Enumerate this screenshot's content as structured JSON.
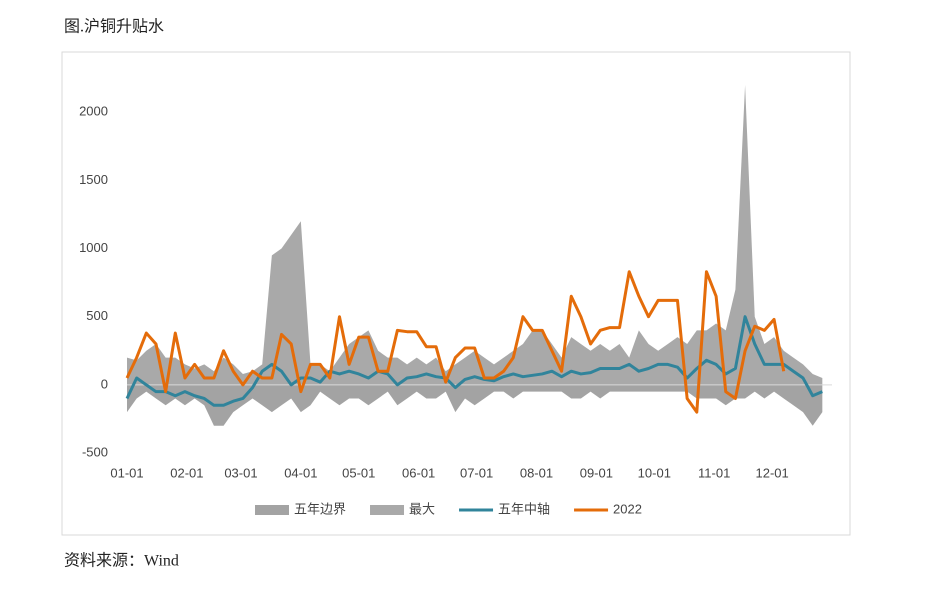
{
  "chart_data": {
    "type": "line",
    "title": "图.沪铜升贴水",
    "source": "资料来源：Wind",
    "x": [
      0,
      5,
      10,
      15,
      20,
      25,
      30,
      35,
      40,
      45,
      50,
      55,
      60,
      65,
      70,
      75,
      80,
      85,
      90,
      95,
      100,
      105,
      110,
      115,
      120,
      125,
      130,
      135,
      140,
      145,
      150,
      155,
      160,
      165,
      170,
      175,
      180,
      185,
      190,
      195,
      200,
      205,
      210,
      215,
      220,
      225,
      230,
      235,
      240,
      245,
      250,
      255,
      260,
      265,
      270,
      275,
      280,
      285,
      290,
      295,
      300,
      305,
      310,
      315,
      320,
      325,
      330,
      335,
      340,
      345,
      350,
      355,
      360
    ],
    "xlim": [
      0,
      365
    ],
    "xticks": [
      {
        "value": 0,
        "label": "01-01"
      },
      {
        "value": 31,
        "label": "02-01"
      },
      {
        "value": 59,
        "label": "03-01"
      },
      {
        "value": 90,
        "label": "04-01"
      },
      {
        "value": 120,
        "label": "05-01"
      },
      {
        "value": 151,
        "label": "06-01"
      },
      {
        "value": 181,
        "label": "07-01"
      },
      {
        "value": 212,
        "label": "08-01"
      },
      {
        "value": 243,
        "label": "09-01"
      },
      {
        "value": 273,
        "label": "10-01"
      },
      {
        "value": 304,
        "label": "11-01"
      },
      {
        "value": 334,
        "label": "12-01"
      }
    ],
    "ylim": [
      -500,
      2200
    ],
    "yticks": [
      -500,
      0,
      500,
      1000,
      1500,
      2000
    ],
    "legend": "bottom",
    "series": [
      {
        "name": "五年边界",
        "type": "area",
        "color": "#a3a3a3",
        "values": [
          -200,
          -100,
          -50,
          -100,
          -150,
          -100,
          -150,
          -100,
          -150,
          -300,
          -300,
          -200,
          -150,
          -100,
          -150,
          -200,
          -150,
          -100,
          -200,
          -150,
          -50,
          -100,
          -150,
          -100,
          -100,
          -150,
          -100,
          -50,
          -150,
          -100,
          -50,
          -100,
          -100,
          -50,
          -200,
          -100,
          -150,
          -100,
          -50,
          -50,
          -100,
          -50,
          -50,
          -50,
          -50,
          -50,
          -100,
          -100,
          -50,
          -100,
          -50,
          -50,
          -50,
          -50,
          -50,
          -50,
          -50,
          -50,
          -50,
          -100,
          -100,
          -100,
          -150,
          -100,
          -100,
          -50,
          -100,
          -50,
          -100,
          -150,
          -200,
          -300,
          -200
        ]
      },
      {
        "name": "最大",
        "type": "area",
        "color": "#a9a9a9",
        "values": [
          200,
          180,
          250,
          300,
          200,
          200,
          150,
          120,
          150,
          100,
          200,
          150,
          80,
          100,
          150,
          950,
          1000,
          1100,
          1200,
          150,
          150,
          100,
          200,
          300,
          350,
          400,
          250,
          200,
          200,
          150,
          200,
          150,
          200,
          100,
          150,
          200,
          250,
          200,
          150,
          200,
          250,
          300,
          400,
          400,
          300,
          200,
          350,
          300,
          250,
          300,
          250,
          300,
          200,
          400,
          300,
          250,
          300,
          350,
          300,
          400,
          400,
          450,
          400,
          700,
          2200,
          500,
          300,
          350,
          250,
          200,
          150,
          80,
          50
        ]
      },
      {
        "name": "五年中轴",
        "type": "line",
        "color": "#31849b",
        "values": [
          -100,
          50,
          0,
          -50,
          -50,
          -80,
          -50,
          -80,
          -100,
          -150,
          -150,
          -120,
          -100,
          -20,
          100,
          150,
          100,
          0,
          50,
          50,
          20,
          100,
          80,
          100,
          80,
          50,
          100,
          80,
          0,
          50,
          60,
          80,
          60,
          50,
          -20,
          40,
          60,
          40,
          30,
          60,
          80,
          60,
          70,
          80,
          100,
          60,
          100,
          80,
          90,
          120,
          120,
          120,
          150,
          100,
          120,
          150,
          150,
          130,
          50,
          120,
          180,
          150,
          80,
          120,
          500,
          300,
          150,
          150,
          150,
          100,
          50,
          -80,
          -50
        ]
      },
      {
        "name": "2022",
        "type": "line",
        "color": "#e46c0a",
        "values": [
          50,
          200,
          380,
          300,
          -50,
          380,
          50,
          150,
          50,
          50,
          250,
          100,
          0,
          100,
          50,
          50,
          370,
          300,
          -50,
          150,
          150,
          50,
          500,
          150,
          350,
          350,
          100,
          100,
          400,
          390,
          390,
          280,
          280,
          20,
          200,
          270,
          270,
          50,
          50,
          100,
          200,
          500,
          400,
          400,
          250,
          100,
          650,
          500,
          300,
          400,
          420,
          420,
          830,
          650,
          500,
          620,
          620,
          620,
          -100,
          -200,
          830,
          650,
          -50,
          -100,
          250,
          430,
          400,
          480,
          100,
          null,
          null,
          null,
          null
        ]
      }
    ]
  }
}
